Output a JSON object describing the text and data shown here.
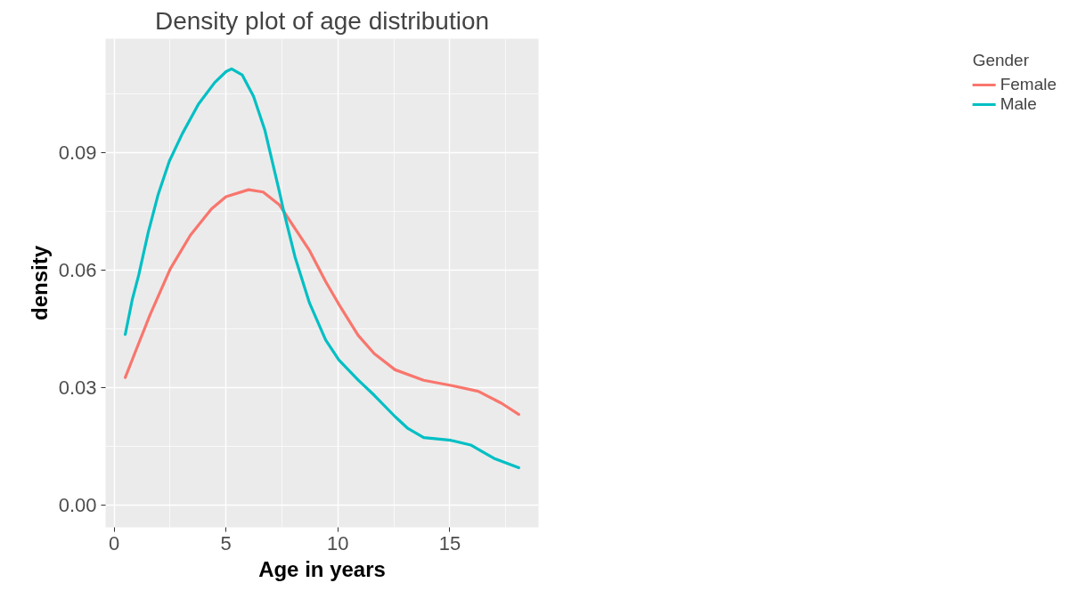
{
  "chart_data": {
    "type": "line",
    "title": "Density plot of age distribution",
    "xlabel": "Age in years",
    "ylabel": "density",
    "legend_title": "Gender",
    "legend": "right",
    "grid": true,
    "line_style": "solid",
    "xlim": [
      -0.38,
      18.96
    ],
    "ylim": [
      -0.0056,
      0.119
    ],
    "xticks": [
      0,
      5,
      10,
      15
    ],
    "yticks": [
      {
        "value": 0,
        "label": "0.00"
      },
      {
        "value": 0.03,
        "label": "0.03"
      },
      {
        "value": 0.06,
        "label": "0.06"
      },
      {
        "value": 0.09,
        "label": "0.09"
      }
    ],
    "series": [
      {
        "name": "Female",
        "color": "#f8766d",
        "x": [
          0.5,
          1.03,
          1.6,
          2.51,
          3.41,
          4.35,
          5.0,
          6.01,
          6.66,
          7.39,
          8.73,
          9.45,
          10.04,
          10.9,
          11.62,
          12.55,
          13.83,
          15.04,
          16.27,
          17.32,
          18.08
        ],
        "values": [
          0.0326,
          0.0403,
          0.0485,
          0.0603,
          0.0689,
          0.0756,
          0.0787,
          0.0805,
          0.0799,
          0.0766,
          0.065,
          0.0571,
          0.0513,
          0.0434,
          0.0387,
          0.0346,
          0.0319,
          0.0306,
          0.0291,
          0.026,
          0.0232
        ]
      },
      {
        "name": "Male",
        "color": "#00bfc4",
        "x": [
          0.5,
          0.81,
          1.1,
          1.53,
          1.96,
          2.47,
          3.05,
          3.77,
          4.49,
          5.0,
          5.25,
          5.72,
          6.23,
          6.74,
          7.39,
          7.57,
          8.08,
          8.73,
          9.45,
          10.04,
          10.9,
          11.62,
          12.56,
          13.13,
          13.83,
          15.04,
          15.93,
          16.97,
          18.08
        ],
        "values": [
          0.0436,
          0.0524,
          0.0587,
          0.0697,
          0.0791,
          0.0878,
          0.0948,
          0.1023,
          0.1078,
          0.1106,
          0.1113,
          0.1098,
          0.1043,
          0.0956,
          0.0799,
          0.0752,
          0.0634,
          0.0516,
          0.0422,
          0.0371,
          0.032,
          0.0281,
          0.0226,
          0.0196,
          0.0173,
          0.0166,
          0.0154,
          0.012,
          0.0096
        ]
      }
    ]
  }
}
